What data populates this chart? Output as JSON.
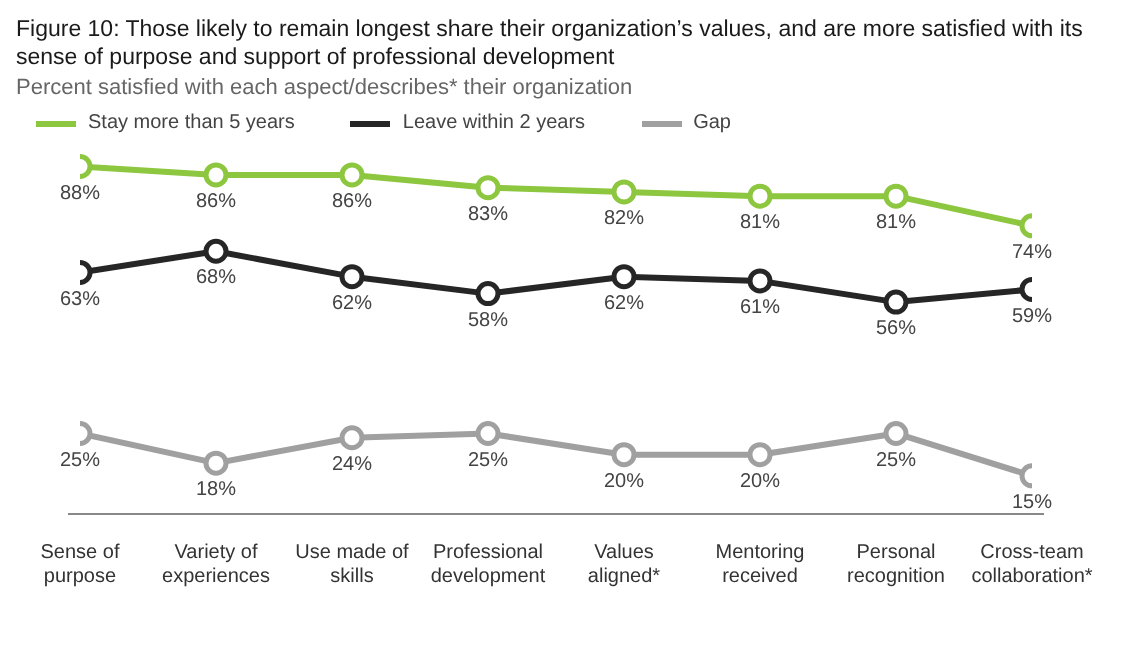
{
  "chart_data": {
    "type": "line",
    "title": "Figure 10: Those likely to remain longest share their organization’s values, and are more satisfied with its sense of purpose and support of professional development",
    "subtitle": "Percent satisfied with each aspect/describes* their organization",
    "categories": [
      "Sense of purpose",
      "Variety of experiences",
      "Use made of skills",
      "Professional development",
      "Values aligned*",
      "Mentoring received",
      "Personal recognition",
      "Cross-team collaboration*"
    ],
    "series": [
      {
        "name": "Stay more than 5 years",
        "color": "#8dc63f",
        "values": [
          88,
          86,
          86,
          83,
          82,
          81,
          81,
          74
        ],
        "value_labels": [
          "88%",
          "86%",
          "86%",
          "83%",
          "82%",
          "81%",
          "81%",
          "74%"
        ]
      },
      {
        "name": "Leave within 2 years",
        "color": "#262626",
        "values": [
          63,
          68,
          62,
          58,
          62,
          61,
          56,
          59
        ],
        "value_labels": [
          "63%",
          "68%",
          "62%",
          "58%",
          "62%",
          "61%",
          "56%",
          "59%"
        ]
      },
      {
        "name": "Gap",
        "color": "#a0a0a0",
        "values": [
          25,
          18,
          24,
          25,
          20,
          20,
          25,
          15
        ],
        "value_labels": [
          "25%",
          "18%",
          "24%",
          "25%",
          "20%",
          "20%",
          "25%",
          "15%"
        ]
      }
    ],
    "tick_labels": "x",
    "legend": "top left",
    "marker": "circle",
    "line_style": "solid"
  }
}
